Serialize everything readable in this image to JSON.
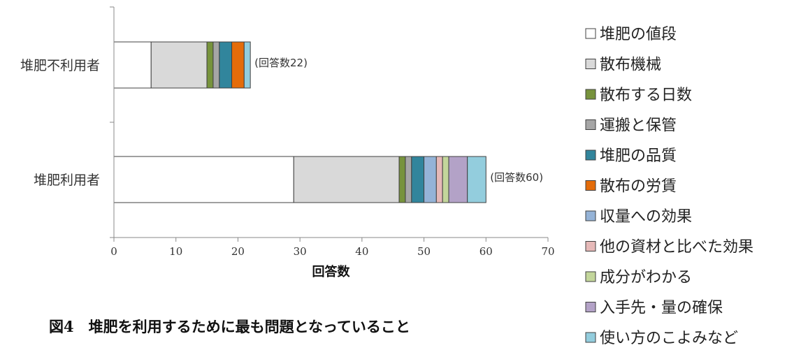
{
  "chart_data": {
    "type": "bar",
    "orientation": "horizontal",
    "stacked": true,
    "categories": [
      "堆肥不利用者",
      "堆肥利用者"
    ],
    "totals": [
      "(回答数22)",
      "(回答数60)"
    ],
    "series": [
      {
        "name": "堆肥の値段",
        "color": "#ffffff",
        "values": [
          6,
          29
        ]
      },
      {
        "name": "散布機械",
        "color": "#d9d9d9",
        "values": [
          9,
          17
        ]
      },
      {
        "name": "散布する日数",
        "color": "#77933c",
        "values": [
          1,
          1
        ]
      },
      {
        "name": "運搬と保管",
        "color": "#a6a6a6",
        "values": [
          1,
          1
        ]
      },
      {
        "name": "堆肥の品質",
        "color": "#31859c",
        "values": [
          2,
          2
        ]
      },
      {
        "name": "散布の労賃",
        "color": "#e46c0a",
        "values": [
          2,
          0
        ]
      },
      {
        "name": "収量への効果",
        "color": "#95b3d7",
        "values": [
          0,
          2
        ]
      },
      {
        "name": "他の資材と比べた効果",
        "color": "#e6b9b8",
        "values": [
          0,
          1
        ]
      },
      {
        "name": "成分がわかる",
        "color": "#c3d69b",
        "values": [
          0,
          1
        ]
      },
      {
        "name": "入手先・量の確保",
        "color": "#b3a2c7",
        "values": [
          0,
          3
        ]
      },
      {
        "name": "使い方のこよみなど",
        "color": "#93cddd",
        "values": [
          1,
          3
        ]
      }
    ],
    "xlabel": "回答数",
    "xlim": [
      0,
      70
    ],
    "xticks": [
      0,
      10,
      20,
      30,
      40,
      50,
      60,
      70
    ],
    "grid": false,
    "legend": "right"
  },
  "caption": "図4　堆肥を利用するために最も問題となっていること"
}
